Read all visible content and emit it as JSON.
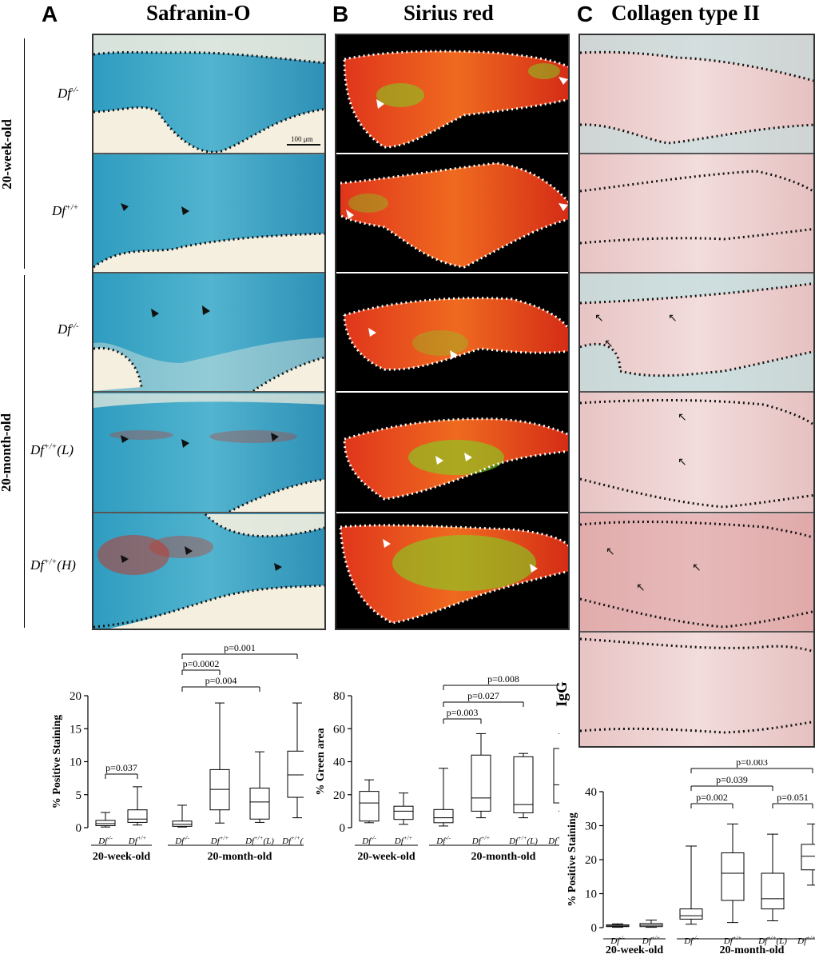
{
  "panels": {
    "A": {
      "letter": "A",
      "title": "Safranin-O"
    },
    "B": {
      "letter": "B",
      "title": "Sirius red"
    },
    "C": {
      "letter": "C",
      "title": "Collagen type II"
    }
  },
  "age_groups": {
    "young": "20-week-old",
    "old": "20-month-old"
  },
  "row_labels": [
    {
      "base": "Df",
      "sup": "-/-",
      "suffix": ""
    },
    {
      "base": "Df",
      "sup": "+/+",
      "suffix": ""
    },
    {
      "base": "Df",
      "sup": "-/-",
      "suffix": ""
    },
    {
      "base": "Df",
      "sup": "+/+",
      "suffix": "(L)"
    },
    {
      "base": "Df",
      "sup": "+/+",
      "suffix": "(H)"
    }
  ],
  "scale_bar": "100 μm",
  "igg_label": "IgG",
  "colors": {
    "safranin_blue": "#3ba3c4",
    "safranin_red": "#c0392b",
    "sirius_red": "#e2331a",
    "sirius_green": "#7ed321",
    "collagen_pink": "#eccfcf",
    "collagen_dark": "#a94a4a"
  },
  "chart_data": [
    {
      "type": "box",
      "ylabel": "% Positive Staining",
      "ylim": [
        0,
        20
      ],
      "yticks": [
        0,
        5,
        10,
        15,
        20
      ],
      "categories": [
        "Df-/-",
        "Df+/+",
        "Df-/-",
        "Df+/+",
        "Df+/+(L)",
        "Df+/+(H)"
      ],
      "category_labels": [
        {
          "base": "Df",
          "sup": "-/-",
          "suffix": ""
        },
        {
          "base": "Df",
          "sup": "+/+",
          "suffix": ""
        },
        {
          "base": "Df",
          "sup": "-/-",
          "suffix": ""
        },
        {
          "base": "Df",
          "sup": "+/+",
          "suffix": ""
        },
        {
          "base": "Df",
          "sup": "+/+",
          "suffix": "(L)"
        },
        {
          "base": "Df",
          "sup": "+/+",
          "suffix": "(H)"
        }
      ],
      "groups": [
        {
          "label": "20-week-old",
          "from": 0,
          "to": 1
        },
        {
          "label": "20-month-old",
          "from": 2,
          "to": 5
        }
      ],
      "boxes": [
        {
          "min": 0.1,
          "q1": 0.3,
          "median": 0.6,
          "q3": 1.1,
          "max": 2.3
        },
        {
          "min": 0.4,
          "q1": 0.8,
          "median": 1.3,
          "q3": 2.7,
          "max": 6.2
        },
        {
          "min": 0.1,
          "q1": 0.2,
          "median": 0.5,
          "q3": 1.0,
          "max": 3.4
        },
        {
          "min": 0.7,
          "q1": 2.7,
          "median": 5.8,
          "q3": 8.8,
          "max": 18.9
        },
        {
          "min": 0.8,
          "q1": 1.3,
          "median": 3.9,
          "q3": 6.0,
          "max": 11.5
        },
        {
          "min": 1.5,
          "q1": 4.6,
          "median": 8.0,
          "q3": 11.6,
          "max": 18.9
        }
      ],
      "comparisons": [
        {
          "a": 0,
          "b": 1,
          "label": "p=0.037"
        },
        {
          "a": 2,
          "b": 3,
          "label": "p=0.0002"
        },
        {
          "a": 2,
          "b": 4,
          "label": "p=0.004"
        },
        {
          "a": 2,
          "b": 5,
          "label": "p=0.001"
        }
      ]
    },
    {
      "type": "box",
      "ylabel": "% Green area",
      "ylim": [
        0,
        80
      ],
      "yticks": [
        0,
        20,
        40,
        60,
        80
      ],
      "categories": [
        "Df-/-",
        "Df+/+",
        "Df-/-",
        "Df+/+",
        "Df+/+(L)",
        "Df+/+(H)"
      ],
      "category_labels": [
        {
          "base": "Df",
          "sup": "-/-",
          "suffix": ""
        },
        {
          "base": "Df",
          "sup": "+/+",
          "suffix": ""
        },
        {
          "base": "Df",
          "sup": "-/-",
          "suffix": ""
        },
        {
          "base": "Df",
          "sup": "+/+",
          "suffix": ""
        },
        {
          "base": "Df",
          "sup": "+/+",
          "suffix": "(L)"
        },
        {
          "base": "Df",
          "sup": "+/+",
          "suffix": "(H)"
        }
      ],
      "groups": [
        {
          "label": "20-week-old",
          "from": 0,
          "to": 1
        },
        {
          "label": "20-month-old",
          "from": 2,
          "to": 5
        }
      ],
      "boxes": [
        {
          "min": 3,
          "q1": 4,
          "median": 15,
          "q3": 22,
          "max": 29
        },
        {
          "min": 2,
          "q1": 5,
          "median": 10,
          "q3": 13,
          "max": 21
        },
        {
          "min": 1,
          "q1": 3,
          "median": 6,
          "q3": 11,
          "max": 36
        },
        {
          "min": 6,
          "q1": 10,
          "median": 18,
          "q3": 44,
          "max": 57
        },
        {
          "min": 6,
          "q1": 9,
          "median": 14,
          "q3": 43,
          "max": 45
        },
        {
          "min": 10,
          "q1": 15,
          "median": 26,
          "q3": 48,
          "max": 57
        }
      ],
      "comparisons": [
        {
          "a": 2,
          "b": 3,
          "label": "p=0.003"
        },
        {
          "a": 2,
          "b": 4,
          "label": "p=0.027"
        },
        {
          "a": 2,
          "b": 5,
          "label": "p=0.008"
        }
      ]
    },
    {
      "type": "box",
      "ylabel": "% Positive Staining",
      "ylim": [
        0,
        40
      ],
      "yticks": [
        0,
        10,
        20,
        30,
        40
      ],
      "categories": [
        "Df-/-",
        "Df+/+",
        "Df-/-",
        "Df+/+",
        "Df+/+(L)",
        "Df+/+(H)"
      ],
      "category_labels": [
        {
          "base": "Df",
          "sup": "-/-",
          "suffix": ""
        },
        {
          "base": "Df",
          "sup": "+/+",
          "suffix": ""
        },
        {
          "base": "Df",
          "sup": "-/-",
          "suffix": ""
        },
        {
          "base": "Df",
          "sup": "+/+",
          "suffix": ""
        },
        {
          "base": "Df",
          "sup": "+/+",
          "suffix": "(L)"
        },
        {
          "base": "Df",
          "sup": "+/+",
          "suffix": "(H)"
        }
      ],
      "groups": [
        {
          "label": "20-week-old",
          "from": 0,
          "to": 1
        },
        {
          "label": "20-month-old",
          "from": 2,
          "to": 5
        }
      ],
      "boxes": [
        {
          "min": 0.1,
          "q1": 0.3,
          "median": 0.5,
          "q3": 0.8,
          "max": 1.1
        },
        {
          "min": 0.1,
          "q1": 0.3,
          "median": 0.7,
          "q3": 1.2,
          "max": 2.2
        },
        {
          "min": 1.0,
          "q1": 2.5,
          "median": 3.5,
          "q3": 5.5,
          "max": 24
        },
        {
          "min": 1.5,
          "q1": 8.0,
          "median": 16.0,
          "q3": 22.0,
          "max": 30.5
        },
        {
          "min": 2.0,
          "q1": 5.5,
          "median": 8.5,
          "q3": 16.0,
          "max": 27.5
        },
        {
          "min": 12.5,
          "q1": 17.0,
          "median": 21.0,
          "q3": 24.5,
          "max": 30.5
        }
      ],
      "comparisons": [
        {
          "a": 2,
          "b": 3,
          "label": "p=0.002"
        },
        {
          "a": 4,
          "b": 5,
          "label": "p=0.051"
        },
        {
          "a": 2,
          "b": 4,
          "label": "p=0.039"
        },
        {
          "a": 2,
          "b": 5,
          "label": "p=0.003"
        }
      ]
    }
  ]
}
